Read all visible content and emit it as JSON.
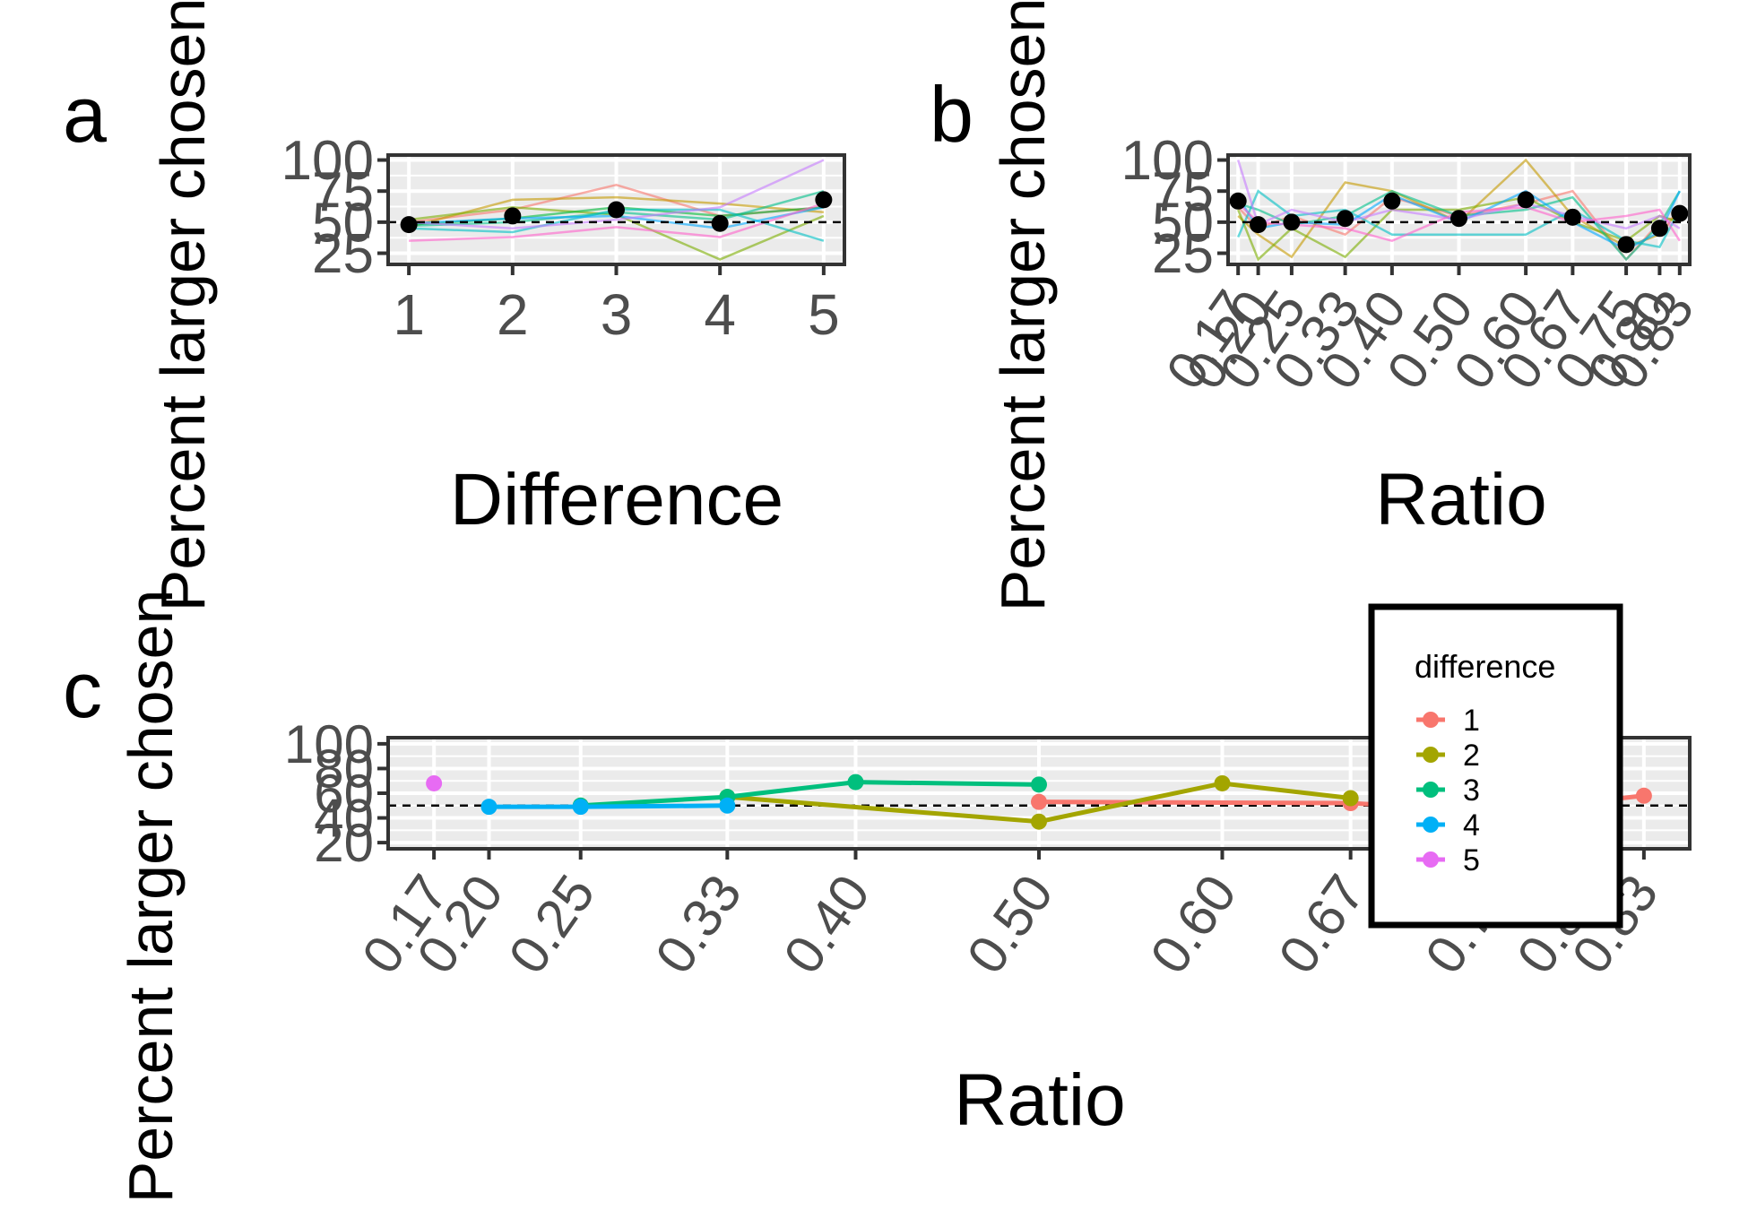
{
  "chart_data": [
    {
      "panel": "a",
      "type": "line",
      "xlabel": "Difference",
      "ylabel": "Percent larger chosen",
      "x": [
        1,
        2,
        3,
        4,
        5
      ],
      "xticks": [
        "1",
        "2",
        "3",
        "4",
        "5"
      ],
      "yticks": [
        "25",
        "50",
        "75",
        "100"
      ],
      "ylim": [
        16,
        104
      ],
      "xlim": [
        0.8,
        5.2
      ],
      "reference_line": 50,
      "mean_points": [
        48,
        55,
        60,
        49,
        68
      ],
      "individual_series": [
        {
          "color": "#F8766D",
          "values": [
            50,
            60,
            80,
            55,
            62
          ]
        },
        {
          "color": "#C49A00",
          "values": [
            46,
            68,
            70,
            65,
            58
          ]
        },
        {
          "color": "#7CAE00",
          "values": [
            52,
            62,
            56,
            20,
            55
          ]
        },
        {
          "color": "#00BA38",
          "values": [
            48,
            53,
            62,
            55,
            62
          ]
        },
        {
          "color": "#00C08B",
          "values": [
            47,
            50,
            58,
            52,
            75
          ]
        },
        {
          "color": "#00BFC4",
          "values": [
            45,
            42,
            60,
            60,
            35
          ]
        },
        {
          "color": "#00A9FF",
          "values": [
            49,
            53,
            55,
            45,
            62
          ]
        },
        {
          "color": "#C77CFF",
          "values": [
            50,
            45,
            52,
            62,
            100
          ]
        },
        {
          "color": "#FF61CC",
          "values": [
            35,
            38,
            46,
            38,
            65
          ]
        }
      ]
    },
    {
      "panel": "b",
      "type": "line",
      "xlabel": "Ratio",
      "ylabel": "Percent larger chosen",
      "x": [
        0.17,
        0.2,
        0.25,
        0.33,
        0.4,
        0.5,
        0.6,
        0.67,
        0.75,
        0.8,
        0.83
      ],
      "xticks": [
        "0.17",
        "0.20",
        "0.25",
        "0.33",
        "0.40",
        "0.50",
        "0.60",
        "0.67",
        "0.75",
        "0.80",
        "0.83"
      ],
      "yticks": [
        "25",
        "50",
        "75",
        "100"
      ],
      "ylim": [
        16,
        104
      ],
      "xlim": [
        0.155,
        0.845
      ],
      "reference_line": 50,
      "mean_points": [
        67,
        48,
        50,
        53,
        67,
        53,
        68,
        54,
        32,
        45,
        57
      ],
      "individual_series": [
        {
          "color": "#F8766D",
          "values": [
            62,
            45,
            55,
            40,
            70,
            55,
            65,
            75,
            20,
            50,
            55
          ]
        },
        {
          "color": "#C49A00",
          "values": [
            55,
            40,
            22,
            82,
            75,
            50,
            100,
            55,
            30,
            40,
            60
          ]
        },
        {
          "color": "#7CAE00",
          "values": [
            60,
            20,
            45,
            22,
            60,
            60,
            70,
            50,
            35,
            55,
            50
          ]
        },
        {
          "color": "#00C08B",
          "values": [
            65,
            60,
            48,
            55,
            75,
            55,
            60,
            70,
            20,
            48,
            75
          ]
        },
        {
          "color": "#00BFC4",
          "values": [
            38,
            75,
            55,
            60,
            40,
            40,
            40,
            60,
            35,
            30,
            60
          ]
        },
        {
          "color": "#00A9FF",
          "values": [
            70,
            45,
            50,
            48,
            72,
            50,
            75,
            50,
            28,
            42,
            75
          ]
        },
        {
          "color": "#C77CFF",
          "values": [
            100,
            48,
            60,
            50,
            60,
            52,
            65,
            55,
            45,
            55,
            45
          ]
        },
        {
          "color": "#FF61CC",
          "values": [
            65,
            50,
            48,
            45,
            35,
            58,
            62,
            50,
            55,
            60,
            35
          ]
        }
      ]
    },
    {
      "panel": "c",
      "type": "line",
      "xlabel": "Ratio",
      "ylabel": "Percent larger chosen",
      "xticks": [
        "0.17",
        "0.20",
        "0.25",
        "0.33",
        "0.40",
        "0.50",
        "0.60",
        "0.67",
        "0.75",
        "0.80",
        "0.83"
      ],
      "tick_values": [
        0.17,
        0.2,
        0.25,
        0.33,
        0.4,
        0.5,
        0.6,
        0.67,
        0.75,
        0.8,
        0.83
      ],
      "yticks": [
        "20",
        "40",
        "60",
        "80",
        "100"
      ],
      "ylim": [
        15,
        105
      ],
      "xlim": [
        0.145,
        0.855
      ],
      "reference_line": 50,
      "legend": {
        "title": "difference",
        "position": "top-right"
      },
      "series": [
        {
          "name": "1",
          "color": "#F8766D",
          "x": [
            0.5,
            0.67,
            0.75,
            0.83
          ],
          "y": [
            53,
            52,
            45,
            58
          ]
        },
        {
          "name": "2",
          "color": "#A3A500",
          "x": [
            0.33,
            0.5,
            0.6,
            0.67
          ],
          "y": [
            57,
            37,
            68,
            56
          ]
        },
        {
          "name": "3",
          "color": "#00BF7D",
          "x": [
            0.25,
            0.33,
            0.4,
            0.5
          ],
          "y": [
            50,
            57,
            69,
            67
          ]
        },
        {
          "name": "4",
          "color": "#00B0F6",
          "x": [
            0.2,
            0.25,
            0.33
          ],
          "y": [
            49,
            49,
            50
          ]
        },
        {
          "name": "5",
          "color": "#E76BF3",
          "x": [
            0.17
          ],
          "y": [
            68
          ]
        }
      ]
    }
  ]
}
